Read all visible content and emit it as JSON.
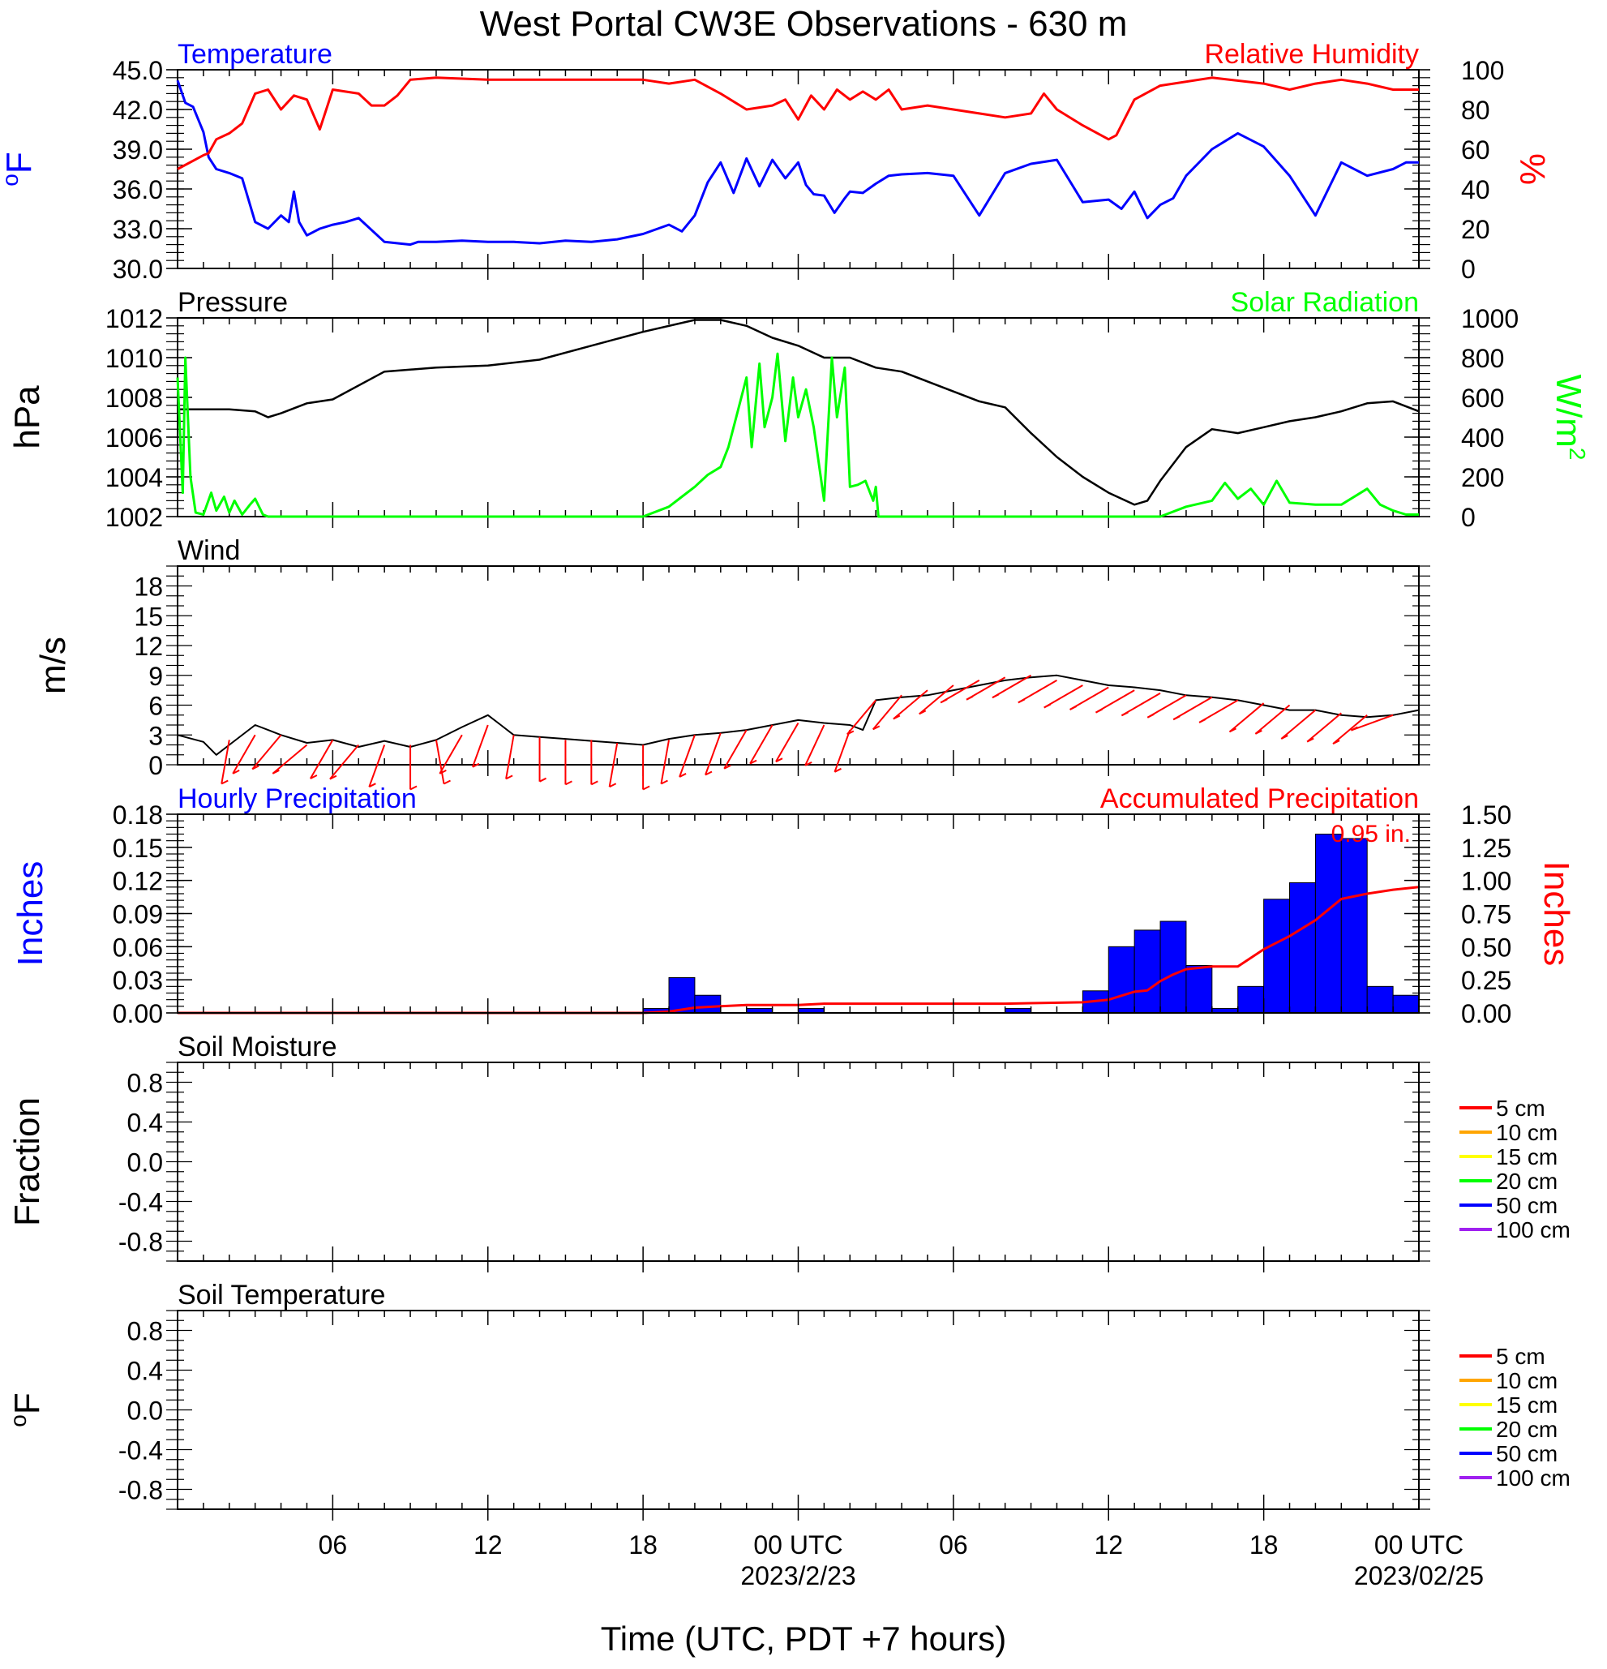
{
  "page": {
    "title": "West Portal CW3E Observations - 630 m",
    "x_axis_title": "Time (UTC, PDT +7 hours)"
  },
  "x_axis": {
    "ticks": [
      {
        "hour": 6,
        "label": "06"
      },
      {
        "hour": 12,
        "label": "12"
      },
      {
        "hour": 18,
        "label": "18"
      },
      {
        "hour": 24,
        "label": "00 UTC",
        "sublabel": "2023/2/23"
      },
      {
        "hour": 30,
        "label": "06"
      },
      {
        "hour": 36,
        "label": "12"
      },
      {
        "hour": 42,
        "label": "18"
      },
      {
        "hour": 48,
        "label": "00 UTC",
        "sublabel": "2023/02/25"
      }
    ]
  },
  "colors": {
    "temperature": "#0000ff",
    "humidity": "#ff0000",
    "pressure": "#000000",
    "solar": "#00ff00",
    "wind": "#000000",
    "wind_barb": "#ff0000",
    "hourly_precip": "#0000ff",
    "accum_precip": "#ff0000"
  },
  "chart_data": [
    {
      "type": "line",
      "panel": "temperature-humidity",
      "left_title": "Temperature",
      "right_title": "Relative Humidity",
      "ylabel": "oF",
      "ylabel_sup": "o",
      "ylabel_main": "F",
      "y2label": "%",
      "ylim": [
        30,
        45
      ],
      "y2lim": [
        0,
        100
      ],
      "yticks": [
        "30.0",
        "33.0",
        "36.0",
        "39.0",
        "42.0",
        "45.0"
      ],
      "y2ticks": [
        "0",
        "20",
        "40",
        "60",
        "80",
        "100"
      ],
      "series": [
        {
          "name": "Temperature",
          "axis": "left",
          "x": [
            0,
            0.3,
            0.6,
            1,
            1.2,
            1.5,
            2,
            2.5,
            3,
            3.5,
            4,
            4.3,
            4.5,
            4.7,
            5,
            5.3,
            5.5,
            6,
            6.5,
            7,
            8,
            9,
            9.3,
            10,
            11,
            12,
            13,
            14,
            15,
            16,
            17,
            18,
            19,
            19.5,
            20,
            20.5,
            21,
            21.5,
            22,
            22.5,
            23,
            23.5,
            24,
            24.3,
            24.6,
            25,
            25.4,
            25.8,
            26,
            26.5,
            27,
            27.5,
            28,
            29,
            30,
            31,
            32,
            33,
            34,
            35,
            36,
            36.5,
            37,
            37.5,
            38,
            38.5,
            39,
            40,
            41,
            42,
            43,
            44,
            45,
            46,
            47,
            47.5,
            48
          ],
          "y": [
            44.2,
            42.5,
            42.2,
            40.3,
            38.4,
            37.5,
            37.2,
            36.8,
            33.5,
            33.0,
            34.0,
            33.5,
            35.8,
            33.5,
            32.5,
            32.8,
            33.0,
            33.3,
            33.5,
            33.8,
            32.0,
            31.8,
            32.0,
            32.0,
            32.1,
            32.0,
            32.0,
            31.9,
            32.1,
            32.0,
            32.2,
            32.6,
            33.3,
            32.8,
            34.0,
            36.5,
            38.0,
            35.7,
            38.3,
            36.2,
            38.2,
            36.8,
            38.0,
            36.3,
            35.6,
            35.5,
            34.2,
            35.3,
            35.8,
            35.7,
            36.4,
            37.0,
            37.1,
            37.2,
            37.0,
            34.0,
            37.2,
            37.9,
            38.2,
            35.0,
            35.2,
            34.5,
            35.8,
            33.8,
            34.8,
            35.3,
            37.0,
            39.0,
            40.2,
            39.2,
            37.0,
            34.0,
            38.0,
            37.0,
            37.5,
            38.0,
            38.0
          ]
        },
        {
          "name": "Relative Humidity",
          "axis": "right",
          "x": [
            0,
            1,
            1.2,
            1.5,
            2,
            2.5,
            3,
            3.5,
            4,
            4.5,
            5,
            5.5,
            6,
            7,
            7.5,
            8,
            8.5,
            9,
            10,
            12,
            14,
            16,
            18,
            19,
            20,
            21,
            22,
            23,
            23.5,
            24,
            24.5,
            25,
            25.5,
            26,
            26.5,
            27,
            27.5,
            28,
            29,
            30,
            31,
            32,
            33,
            33.5,
            34,
            35,
            36,
            36.3,
            37,
            38,
            40,
            42,
            43,
            44,
            45,
            46,
            47,
            48
          ],
          "y": [
            50,
            57,
            58,
            65,
            68,
            73,
            88,
            90,
            80,
            87,
            85,
            70,
            90,
            88,
            82,
            82,
            87,
            95,
            96,
            95,
            95,
            95,
            95,
            93,
            95,
            88,
            80,
            82,
            85,
            75,
            87,
            80,
            90,
            85,
            89,
            85,
            90,
            80,
            82,
            80,
            78,
            76,
            78,
            88,
            80,
            72,
            65,
            67,
            85,
            92,
            96,
            93,
            90,
            93,
            95,
            93,
            90,
            90
          ]
        }
      ]
    },
    {
      "type": "line",
      "panel": "pressure-solar",
      "left_title": "Pressure",
      "right_title": "Solar Radiation",
      "ylabel": "hPa",
      "y2label": "W/m2",
      "y2label_main": "W/m",
      "y2label_sup": "2",
      "ylim": [
        1002,
        1012
      ],
      "y2lim": [
        0,
        1000
      ],
      "yticks": [
        "1002",
        "1004",
        "1006",
        "1008",
        "1010",
        "1012"
      ],
      "y2ticks": [
        "0",
        "200",
        "400",
        "600",
        "800",
        "1000"
      ],
      "series": [
        {
          "name": "Pressure",
          "axis": "left",
          "x": [
            0,
            2,
            3,
            3.5,
            4,
            5,
            6,
            8,
            10,
            12,
            14,
            16,
            18,
            20,
            21,
            22,
            23,
            24,
            25,
            26,
            27,
            28,
            29,
            30,
            31,
            32,
            33,
            34,
            35,
            36,
            37,
            37.5,
            38,
            39,
            40,
            41,
            42,
            43,
            44,
            45,
            46,
            47,
            48
          ],
          "y": [
            1007.4,
            1007.4,
            1007.3,
            1007.0,
            1007.2,
            1007.7,
            1007.9,
            1009.3,
            1009.5,
            1009.6,
            1009.9,
            1010.6,
            1011.3,
            1011.9,
            1011.9,
            1011.6,
            1011.0,
            1010.6,
            1010.0,
            1010.0,
            1009.5,
            1009.3,
            1008.8,
            1008.3,
            1007.8,
            1007.5,
            1006.2,
            1005.0,
            1004.0,
            1003.2,
            1002.6,
            1002.8,
            1003.8,
            1005.5,
            1006.4,
            1006.2,
            1006.5,
            1006.8,
            1007.0,
            1007.3,
            1007.7,
            1007.8,
            1007.3
          ]
        },
        {
          "name": "Solar Radiation",
          "axis": "right",
          "x": [
            0,
            0.2,
            0.3,
            0.5,
            0.7,
            1,
            1.3,
            1.5,
            1.8,
            2,
            2.2,
            2.5,
            2.8,
            3,
            3.3,
            3.5,
            4,
            18,
            19,
            19.5,
            20,
            20.5,
            21,
            21.3,
            21.6,
            22,
            22.2,
            22.5,
            22.7,
            23,
            23.2,
            23.5,
            23.8,
            24,
            24.3,
            24.6,
            25,
            25.3,
            25.5,
            25.8,
            26,
            26.3,
            26.6,
            26.9,
            27,
            27.1,
            35,
            38,
            39,
            40,
            40.5,
            41,
            41.5,
            42,
            42.5,
            43,
            44,
            45,
            46,
            46.5,
            47,
            47.5,
            48
          ],
          "y": [
            700,
            120,
            800,
            200,
            20,
            10,
            120,
            30,
            100,
            20,
            80,
            10,
            60,
            90,
            10,
            0,
            0,
            0,
            50,
            100,
            150,
            210,
            250,
            350,
            500,
            700,
            350,
            770,
            450,
            600,
            820,
            380,
            700,
            500,
            640,
            450,
            80,
            800,
            500,
            750,
            150,
            160,
            180,
            80,
            150,
            0,
            0,
            0,
            50,
            80,
            170,
            90,
            140,
            60,
            180,
            70,
            60,
            60,
            140,
            60,
            30,
            10,
            10
          ]
        }
      ]
    },
    {
      "type": "line",
      "panel": "wind",
      "left_title": "Wind",
      "ylabel": "m/s",
      "ylim": [
        0,
        20
      ],
      "yticks": [
        "0",
        "3",
        "6",
        "9",
        "12",
        "15",
        "18"
      ],
      "series": [
        {
          "name": "Wind",
          "x": [
            0,
            1,
            1.5,
            2,
            3,
            3.5,
            4,
            5,
            6,
            7,
            8,
            9,
            10,
            11,
            12,
            12.5,
            13,
            14,
            15,
            16,
            17,
            18,
            19,
            20,
            21,
            22,
            23,
            24,
            25,
            26,
            26.5,
            27,
            28,
            29,
            30,
            31,
            32,
            33,
            34,
            35,
            36,
            37,
            38,
            39,
            40,
            41,
            42,
            43,
            44,
            45,
            46,
            47,
            48
          ],
          "y": [
            3.0,
            2.3,
            1.0,
            2.0,
            4.0,
            3.5,
            3.0,
            2.2,
            2.5,
            1.8,
            2.4,
            1.8,
            2.5,
            3.8,
            5.0,
            4.0,
            3.0,
            2.8,
            2.6,
            2.4,
            2.2,
            2.0,
            2.6,
            3.0,
            3.2,
            3.5,
            4.0,
            4.5,
            4.2,
            4.0,
            3.5,
            6.5,
            6.8,
            7.0,
            7.5,
            8.0,
            8.5,
            8.8,
            9.0,
            8.5,
            8.0,
            7.8,
            7.5,
            7.0,
            6.8,
            6.5,
            6.0,
            5.5,
            5.5,
            5.0,
            4.8,
            5.0,
            5.5
          ]
        }
      ],
      "barbs": {
        "x": [
          2,
          3,
          4,
          5,
          6,
          7,
          8,
          9,
          10,
          11,
          12,
          13,
          14,
          15,
          16,
          17,
          18,
          19,
          20,
          21,
          22,
          23,
          24,
          25,
          26,
          27,
          28,
          29,
          30,
          31,
          32,
          33,
          34,
          35,
          36,
          37,
          38,
          39,
          40,
          41,
          42,
          43,
          44,
          45,
          46,
          47
        ],
        "speed": [
          2.5,
          3.0,
          3.0,
          2.0,
          2.5,
          2.0,
          2.0,
          2.0,
          2.5,
          3.0,
          4.0,
          3.0,
          2.8,
          2.5,
          2.5,
          2.2,
          2.0,
          2.5,
          3.0,
          3.2,
          3.5,
          4.0,
          4.2,
          4.0,
          3.5,
          6.5,
          7.0,
          7.5,
          8.0,
          8.5,
          8.8,
          9.0,
          8.5,
          8.0,
          7.8,
          7.5,
          7.2,
          7.0,
          6.8,
          6.5,
          6.2,
          6.0,
          5.5,
          5.2,
          5.0,
          5.0
        ],
        "direction_deg": [
          350,
          330,
          320,
          310,
          330,
          320,
          340,
          360,
          10,
          330,
          340,
          350,
          360,
          360,
          360,
          350,
          360,
          350,
          340,
          340,
          330,
          330,
          330,
          335,
          340,
          320,
          320,
          310,
          310,
          300,
          300,
          300,
          300,
          300,
          300,
          300,
          300,
          300,
          300,
          300,
          310,
          310,
          310,
          310,
          310,
          290
        ]
      }
    },
    {
      "type": "bar",
      "panel": "precipitation",
      "left_title": "Hourly Precipitation",
      "right_title": "Accumulated Precipitation",
      "annotation": "0.95 in.",
      "ylabel": "Inches",
      "y2label": "Inches",
      "ylim": [
        0,
        0.18
      ],
      "y2lim": [
        0,
        1.5
      ],
      "yticks": [
        "0.00",
        "0.03",
        "0.06",
        "0.09",
        "0.12",
        "0.15",
        "0.18"
      ],
      "y2ticks": [
        "0.00",
        "0.25",
        "0.50",
        "0.75",
        "1.00",
        "1.25",
        "1.50"
      ],
      "hourly": {
        "name": "Hourly Precipitation",
        "hour_start": [
          18,
          19,
          20,
          22,
          24,
          32,
          35,
          36,
          37,
          38,
          39,
          40,
          41,
          42,
          43,
          44,
          45,
          46,
          47
        ],
        "values": [
          0.004,
          0.032,
          0.016,
          0.004,
          0.004,
          0.004,
          0.02,
          0.06,
          0.075,
          0.083,
          0.043,
          0.004,
          0.024,
          0.103,
          0.118,
          0.162,
          0.158,
          0.024,
          0.016
        ]
      },
      "accumulated": {
        "name": "Accumulated Precipitation",
        "x": [
          0,
          18,
          19,
          20,
          21,
          22,
          24,
          25,
          32,
          35,
          36,
          37,
          37.5,
          38,
          38.5,
          39,
          40,
          41,
          42,
          43,
          44,
          45,
          46,
          47,
          48
        ],
        "y": [
          0,
          0,
          0.01,
          0.04,
          0.05,
          0.06,
          0.06,
          0.07,
          0.07,
          0.08,
          0.1,
          0.16,
          0.17,
          0.24,
          0.29,
          0.33,
          0.35,
          0.35,
          0.48,
          0.58,
          0.7,
          0.86,
          0.9,
          0.93,
          0.95
        ]
      }
    },
    {
      "type": "line",
      "panel": "soil-moisture",
      "left_title": "Soil Moisture",
      "ylabel": "Fraction",
      "ylim": [
        -1,
        1
      ],
      "yticks": [
        "-0.8",
        "-0.4",
        "0.0",
        "0.4",
        "0.8"
      ],
      "legend": [
        {
          "label": "5 cm",
          "color": "#ff0000"
        },
        {
          "label": "10 cm",
          "color": "#ffa500"
        },
        {
          "label": "15 cm",
          "color": "#ffff00"
        },
        {
          "label": "20 cm",
          "color": "#00ff00"
        },
        {
          "label": "50 cm",
          "color": "#0000ff"
        },
        {
          "label": "100 cm",
          "color": "#a020f0"
        }
      ],
      "series": []
    },
    {
      "type": "line",
      "panel": "soil-temperature",
      "left_title": "Soil Temperature",
      "ylabel": "oF",
      "ylabel_sup": "o",
      "ylabel_main": "F",
      "ylim": [
        -1,
        1
      ],
      "yticks": [
        "-0.8",
        "-0.4",
        "0.0",
        "0.4",
        "0.8"
      ],
      "legend": [
        {
          "label": "5 cm",
          "color": "#ff0000"
        },
        {
          "label": "10 cm",
          "color": "#ffa500"
        },
        {
          "label": "15 cm",
          "color": "#ffff00"
        },
        {
          "label": "20 cm",
          "color": "#00ff00"
        },
        {
          "label": "50 cm",
          "color": "#0000ff"
        },
        {
          "label": "100 cm",
          "color": "#a020f0"
        }
      ],
      "series": []
    }
  ]
}
